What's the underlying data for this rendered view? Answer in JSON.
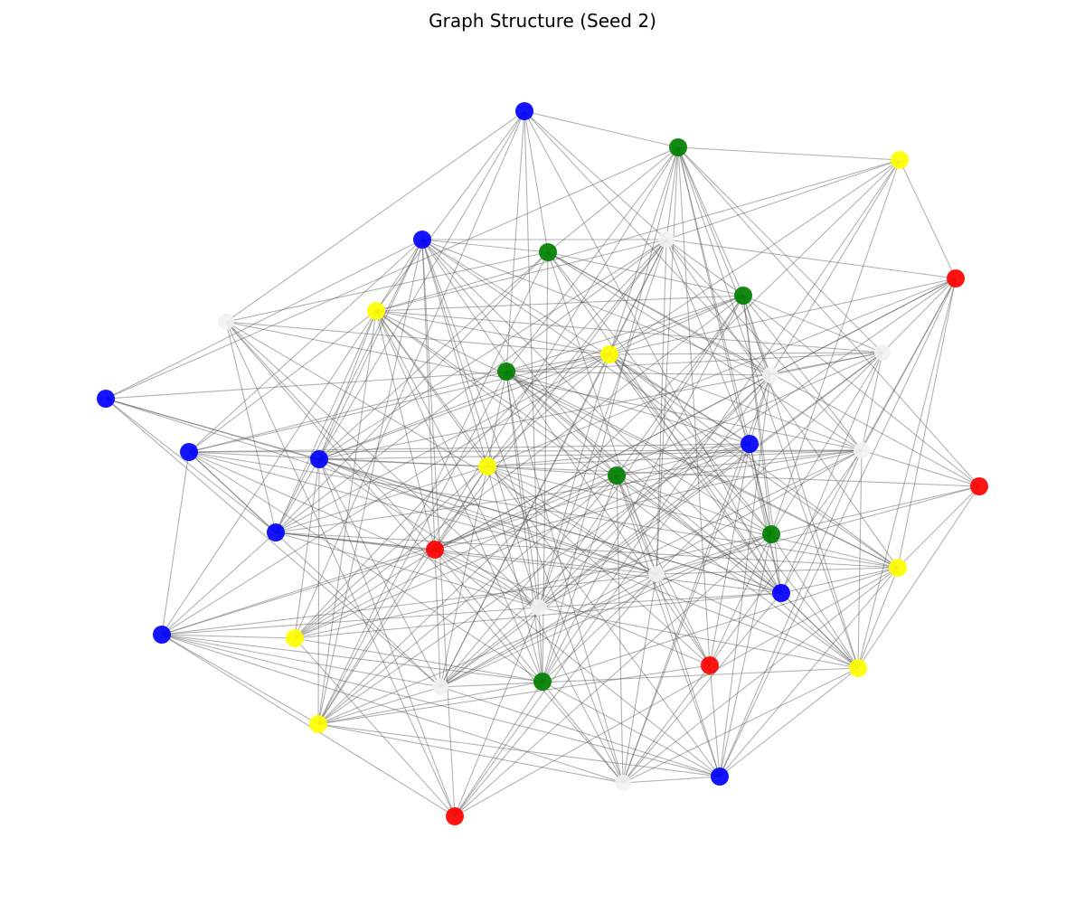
{
  "title": "Graph Structure (Seed 2)",
  "colors": {
    "blue": "#0000ff",
    "green": "#008000",
    "yellow": "#ffff00",
    "red": "#ff0000",
    "white": "#f2f2f2",
    "edge": "#555555"
  },
  "nodes": [
    {
      "id": 0,
      "color": "blue"
    },
    {
      "id": 1,
      "color": "green"
    },
    {
      "id": 2,
      "color": "yellow"
    },
    {
      "id": 3,
      "color": "white"
    },
    {
      "id": 4,
      "color": "blue"
    },
    {
      "id": 5,
      "color": "green"
    },
    {
      "id": 6,
      "color": "red"
    },
    {
      "id": 7,
      "color": "green"
    },
    {
      "id": 8,
      "color": "white"
    },
    {
      "id": 9,
      "color": "yellow"
    },
    {
      "id": 10,
      "color": "yellow"
    },
    {
      "id": 11,
      "color": "white"
    },
    {
      "id": 12,
      "color": "green"
    },
    {
      "id": 13,
      "color": "white"
    },
    {
      "id": 14,
      "color": "blue"
    },
    {
      "id": 15,
      "color": "blue"
    },
    {
      "id": 16,
      "color": "blue"
    },
    {
      "id": 17,
      "color": "yellow"
    },
    {
      "id": 18,
      "color": "blue"
    },
    {
      "id": 19,
      "color": "white"
    },
    {
      "id": 20,
      "color": "green"
    },
    {
      "id": 21,
      "color": "red"
    },
    {
      "id": 22,
      "color": "blue"
    },
    {
      "id": 23,
      "color": "red"
    },
    {
      "id": 24,
      "color": "green"
    },
    {
      "id": 25,
      "color": "white"
    },
    {
      "id": 26,
      "color": "yellow"
    },
    {
      "id": 27,
      "color": "blue"
    },
    {
      "id": 28,
      "color": "white"
    },
    {
      "id": 29,
      "color": "blue"
    },
    {
      "id": 30,
      "color": "yellow"
    },
    {
      "id": 31,
      "color": "red"
    },
    {
      "id": 32,
      "color": "green"
    },
    {
      "id": 33,
      "color": "white"
    },
    {
      "id": 34,
      "color": "yellow"
    },
    {
      "id": 35,
      "color": "yellow"
    },
    {
      "id": 36,
      "color": "white"
    },
    {
      "id": 37,
      "color": "blue"
    },
    {
      "id": 38,
      "color": "red"
    }
  ]
}
